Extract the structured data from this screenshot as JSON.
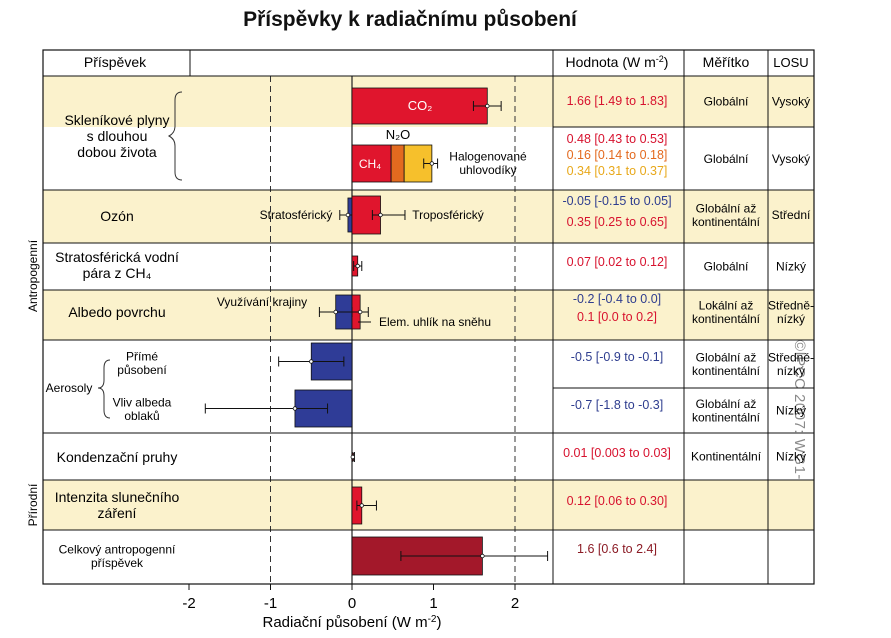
{
  "title": "Příspěvky k radiačnímu působení",
  "credit": "©IPCC 2007: WG1-AR4",
  "headers": {
    "component": "Příspěvek",
    "value": "Hodnota (W m-2)",
    "scale": "Měřítko",
    "losu": "LOSU"
  },
  "groups": {
    "anthro": "Antropogenní",
    "natural": "Přírodní"
  },
  "rows": [
    {
      "label": [
        "Skleníkové plyny",
        "s dlouhou",
        "dobou života"
      ],
      "scale": [
        "Globální"
      ],
      "losu": [
        "Vysoký"
      ],
      "values": [
        {
          "text": "1.66 [1.49 to 1.83]",
          "color": "#d7122e"
        }
      ]
    },
    {
      "label": [],
      "scale": [
        "Globální"
      ],
      "losu": [
        "Vysoký"
      ],
      "values": [
        {
          "text": "0.48 [0.43 to 0.53]",
          "color": "#d7122e"
        },
        {
          "text": "0.16 [0.14 to 0.18]",
          "color": "#e36a1f"
        },
        {
          "text": "0.34 [0.31 to 0.37]",
          "color": "#e8a81a"
        }
      ]
    },
    {
      "label": [
        "Ozón"
      ],
      "scale": [
        "Globální až",
        "kontinentální"
      ],
      "losu": [
        "Střední"
      ],
      "values": [
        {
          "text": "-0.05 [-0.15 to 0.05]",
          "color": "#2e3d8f"
        },
        {
          "text": "0.35 [0.25 to 0.65]",
          "color": "#d7122e"
        }
      ]
    },
    {
      "label": [
        "Stratosférická vodní",
        "pára z CH₄"
      ],
      "scale": [
        "Globální"
      ],
      "losu": [
        "Nízký"
      ],
      "values": [
        {
          "text": "0.07 [0.02 to 0.12]",
          "color": "#d7122e"
        }
      ]
    },
    {
      "label": [
        "Albedo povrchu"
      ],
      "scale": [
        "Lokální až",
        "kontinentální"
      ],
      "losu": [
        "Středně-",
        "nízký"
      ],
      "values": [
        {
          "text": "-0.2 [-0.4 to 0.0]",
          "color": "#2e3d8f"
        },
        {
          "text": "0.1 [0.0 to 0.2]",
          "color": "#d7122e"
        }
      ]
    },
    {
      "label": [],
      "scale": [
        "Globální až",
        "kontinentální"
      ],
      "losu": [
        "Středně-",
        "nízký"
      ],
      "values": [
        {
          "text": "-0.5 [-0.9 to -0.1]",
          "color": "#2e3d8f"
        }
      ]
    },
    {
      "label": [],
      "scale": [
        "Globální až",
        "kontinentální"
      ],
      "losu": [
        "Nízký"
      ],
      "values": [
        {
          "text": "-0.7 [-1.8 to -0.3]",
          "color": "#2e3d8f"
        }
      ]
    },
    {
      "label": [
        "Kondenzační pruhy"
      ],
      "scale": [
        "Kontinentální"
      ],
      "losu": [
        "Nízký"
      ],
      "values": [
        {
          "text": "0.01 [0.003 to 0.03]",
          "color": "#d7122e"
        }
      ]
    },
    {
      "label": [
        "Intenzita slunečního",
        "záření"
      ],
      "scale": [],
      "losu": [],
      "values": [
        {
          "text": "0.12 [0.06 to 0.30]",
          "color": "#d7122e"
        }
      ]
    },
    {
      "label": [
        "Celkový antropogenní",
        "příspěvek"
      ],
      "scale": [],
      "losu": [],
      "values": [
        {
          "text": "1.6 [0.6 to 2.4]",
          "color": "#8b1a24"
        }
      ]
    }
  ],
  "aerosol": {
    "group": "Aerosoly",
    "direct": [
      "Přímé",
      "působení"
    ],
    "cloud": [
      "Vliv albeda",
      "oblaků"
    ]
  },
  "annotations": {
    "co2": "CO₂",
    "n2o": "N₂O",
    "ch4": "CH₄",
    "halo": [
      "Halogenované",
      "uhlovodíky"
    ],
    "strat": "Stratosférický",
    "trop": "Troposférický",
    "landuse": "Využívání krajiny",
    "carbon": "Elem. uhlík na sněhu"
  },
  "chart_data": {
    "type": "bar",
    "orientation": "horizontal",
    "title": "Příspěvky k radiačnímu působení",
    "xlabel": "Radiační působení (W m-2)",
    "xlim": [
      -2,
      2.5
    ],
    "xticks": [
      -2,
      -1,
      0,
      1,
      2
    ],
    "grid": "dashed vertical lines at -1 and 2",
    "bars": [
      {
        "row": 0,
        "series": "CO₂",
        "start": 0,
        "value": 1.66,
        "low": 1.49,
        "high": 1.83,
        "color": "#e0152d"
      },
      {
        "row": 1,
        "series": "CH₄",
        "start": 0,
        "value": 0.48,
        "color": "#e0152d"
      },
      {
        "row": 1,
        "series": "N₂O",
        "start": 0.48,
        "value": 0.16,
        "color": "#e36a1f"
      },
      {
        "row": 1,
        "series": "Halogenované uhlovodíky",
        "start": 0.64,
        "value": 0.34,
        "low": 0.88,
        "high": 1.05,
        "color": "#f6c02c"
      },
      {
        "row": 2,
        "series": "Stratosférický",
        "start": 0,
        "value": -0.05,
        "low": -0.15,
        "high": 0.05,
        "color": "#2f3c97"
      },
      {
        "row": 2,
        "series": "Troposférický",
        "start": 0,
        "value": 0.35,
        "low": 0.25,
        "high": 0.65,
        "color": "#e0152d"
      },
      {
        "row": 3,
        "start": 0,
        "value": 0.07,
        "low": 0.02,
        "high": 0.12,
        "color": "#e0152d"
      },
      {
        "row": 4,
        "series": "Využívání krajiny",
        "start": 0,
        "value": -0.2,
        "low": -0.4,
        "high": 0.0,
        "color": "#2f3c97"
      },
      {
        "row": 4,
        "series": "Elem. uhlík na sněhu",
        "start": 0,
        "value": 0.1,
        "low": 0.0,
        "high": 0.2,
        "color": "#e0152d"
      },
      {
        "row": 5,
        "start": 0,
        "value": -0.5,
        "low": -0.9,
        "high": -0.1,
        "color": "#2f3c97"
      },
      {
        "row": 6,
        "start": 0,
        "value": -0.7,
        "low": -1.8,
        "high": -0.3,
        "color": "#2f3c97"
      },
      {
        "row": 7,
        "start": 0,
        "value": 0.01,
        "low": 0.003,
        "high": 0.03,
        "color": "#e0152d"
      },
      {
        "row": 8,
        "start": 0,
        "value": 0.12,
        "low": 0.06,
        "high": 0.3,
        "color": "#e0152d"
      },
      {
        "row": 9,
        "start": 0,
        "value": 1.6,
        "low": 0.6,
        "high": 2.4,
        "color": "#a3182a"
      }
    ]
  },
  "colors": {
    "band": "#fbf2cc",
    "positive": "#e0152d",
    "negative": "#2f3c97",
    "total": "#a3182a"
  }
}
